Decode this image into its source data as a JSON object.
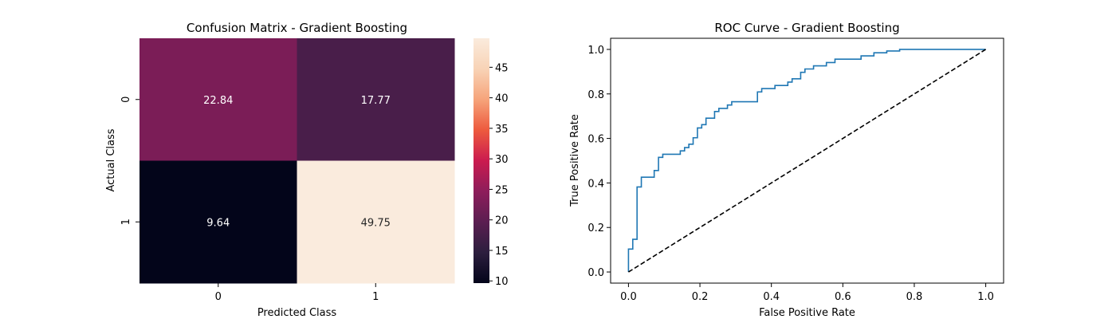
{
  "chart_data": [
    {
      "type": "heatmap",
      "title": "Confusion Matrix - Gradient Boosting",
      "xlabel": "Predicted Class",
      "ylabel": "Actual Class",
      "x_categories": [
        "0",
        "1"
      ],
      "y_categories": [
        "0",
        "1"
      ],
      "values": [
        [
          22.84,
          17.77
        ],
        [
          9.64,
          49.75
        ]
      ],
      "value_labels": [
        [
          "22.84",
          "17.77"
        ],
        [
          "9.64",
          "49.75"
        ]
      ],
      "colorbar": {
        "range": [
          9.64,
          49.75
        ],
        "ticks": [
          10,
          15,
          20,
          25,
          30,
          35,
          40,
          45
        ],
        "tick_labels": [
          "10",
          "15",
          "20",
          "25",
          "30",
          "35",
          "40",
          "45"
        ],
        "colormap": "rocket"
      }
    },
    {
      "type": "line",
      "title": "ROC Curve - Gradient Boosting",
      "xlabel": "False Positive Rate",
      "ylabel": "True Positive Rate",
      "xlim": [
        -0.05,
        1.05
      ],
      "ylim": [
        -0.05,
        1.05
      ],
      "xticks": [
        0.0,
        0.2,
        0.4,
        0.6,
        0.8,
        1.0
      ],
      "xtick_labels": [
        "0.0",
        "0.2",
        "0.4",
        "0.6",
        "0.8",
        "1.0"
      ],
      "yticks": [
        0.0,
        0.2,
        0.4,
        0.6,
        0.8,
        1.0
      ],
      "ytick_labels": [
        "0.0",
        "0.2",
        "0.4",
        "0.6",
        "0.8",
        "1.0"
      ],
      "grid": false,
      "series": [
        {
          "style": "step",
          "color": "#1f77b4",
          "points": [
            [
              0.0,
              0.0
            ],
            [
              0.0,
              0.103
            ],
            [
              0.012,
              0.103
            ],
            [
              0.012,
              0.147
            ],
            [
              0.024,
              0.147
            ],
            [
              0.024,
              0.382
            ],
            [
              0.036,
              0.382
            ],
            [
              0.036,
              0.426
            ],
            [
              0.072,
              0.426
            ],
            [
              0.072,
              0.456
            ],
            [
              0.084,
              0.456
            ],
            [
              0.084,
              0.515
            ],
            [
              0.096,
              0.515
            ],
            [
              0.096,
              0.529
            ],
            [
              0.145,
              0.529
            ],
            [
              0.145,
              0.544
            ],
            [
              0.157,
              0.544
            ],
            [
              0.157,
              0.559
            ],
            [
              0.169,
              0.559
            ],
            [
              0.169,
              0.574
            ],
            [
              0.181,
              0.574
            ],
            [
              0.181,
              0.603
            ],
            [
              0.193,
              0.603
            ],
            [
              0.193,
              0.647
            ],
            [
              0.205,
              0.647
            ],
            [
              0.205,
              0.662
            ],
            [
              0.217,
              0.662
            ],
            [
              0.217,
              0.691
            ],
            [
              0.241,
              0.691
            ],
            [
              0.241,
              0.721
            ],
            [
              0.253,
              0.721
            ],
            [
              0.253,
              0.735
            ],
            [
              0.277,
              0.735
            ],
            [
              0.277,
              0.75
            ],
            [
              0.289,
              0.75
            ],
            [
              0.289,
              0.765
            ],
            [
              0.361,
              0.765
            ],
            [
              0.361,
              0.809
            ],
            [
              0.373,
              0.809
            ],
            [
              0.373,
              0.824
            ],
            [
              0.41,
              0.824
            ],
            [
              0.41,
              0.838
            ],
            [
              0.446,
              0.838
            ],
            [
              0.446,
              0.853
            ],
            [
              0.458,
              0.853
            ],
            [
              0.458,
              0.868
            ],
            [
              0.482,
              0.868
            ],
            [
              0.482,
              0.897
            ],
            [
              0.494,
              0.897
            ],
            [
              0.494,
              0.912
            ],
            [
              0.518,
              0.912
            ],
            [
              0.518,
              0.926
            ],
            [
              0.554,
              0.926
            ],
            [
              0.554,
              0.941
            ],
            [
              0.578,
              0.941
            ],
            [
              0.578,
              0.956
            ],
            [
              0.651,
              0.956
            ],
            [
              0.651,
              0.971
            ],
            [
              0.687,
              0.971
            ],
            [
              0.687,
              0.985
            ],
            [
              0.723,
              0.985
            ],
            [
              0.723,
              0.993
            ],
            [
              0.759,
              0.993
            ],
            [
              0.759,
              1.0
            ],
            [
              1.0,
              1.0
            ]
          ]
        },
        {
          "style": "dashed",
          "color": "#000000",
          "points": [
            [
              0.0,
              0.0
            ],
            [
              1.0,
              1.0
            ]
          ]
        }
      ]
    }
  ]
}
